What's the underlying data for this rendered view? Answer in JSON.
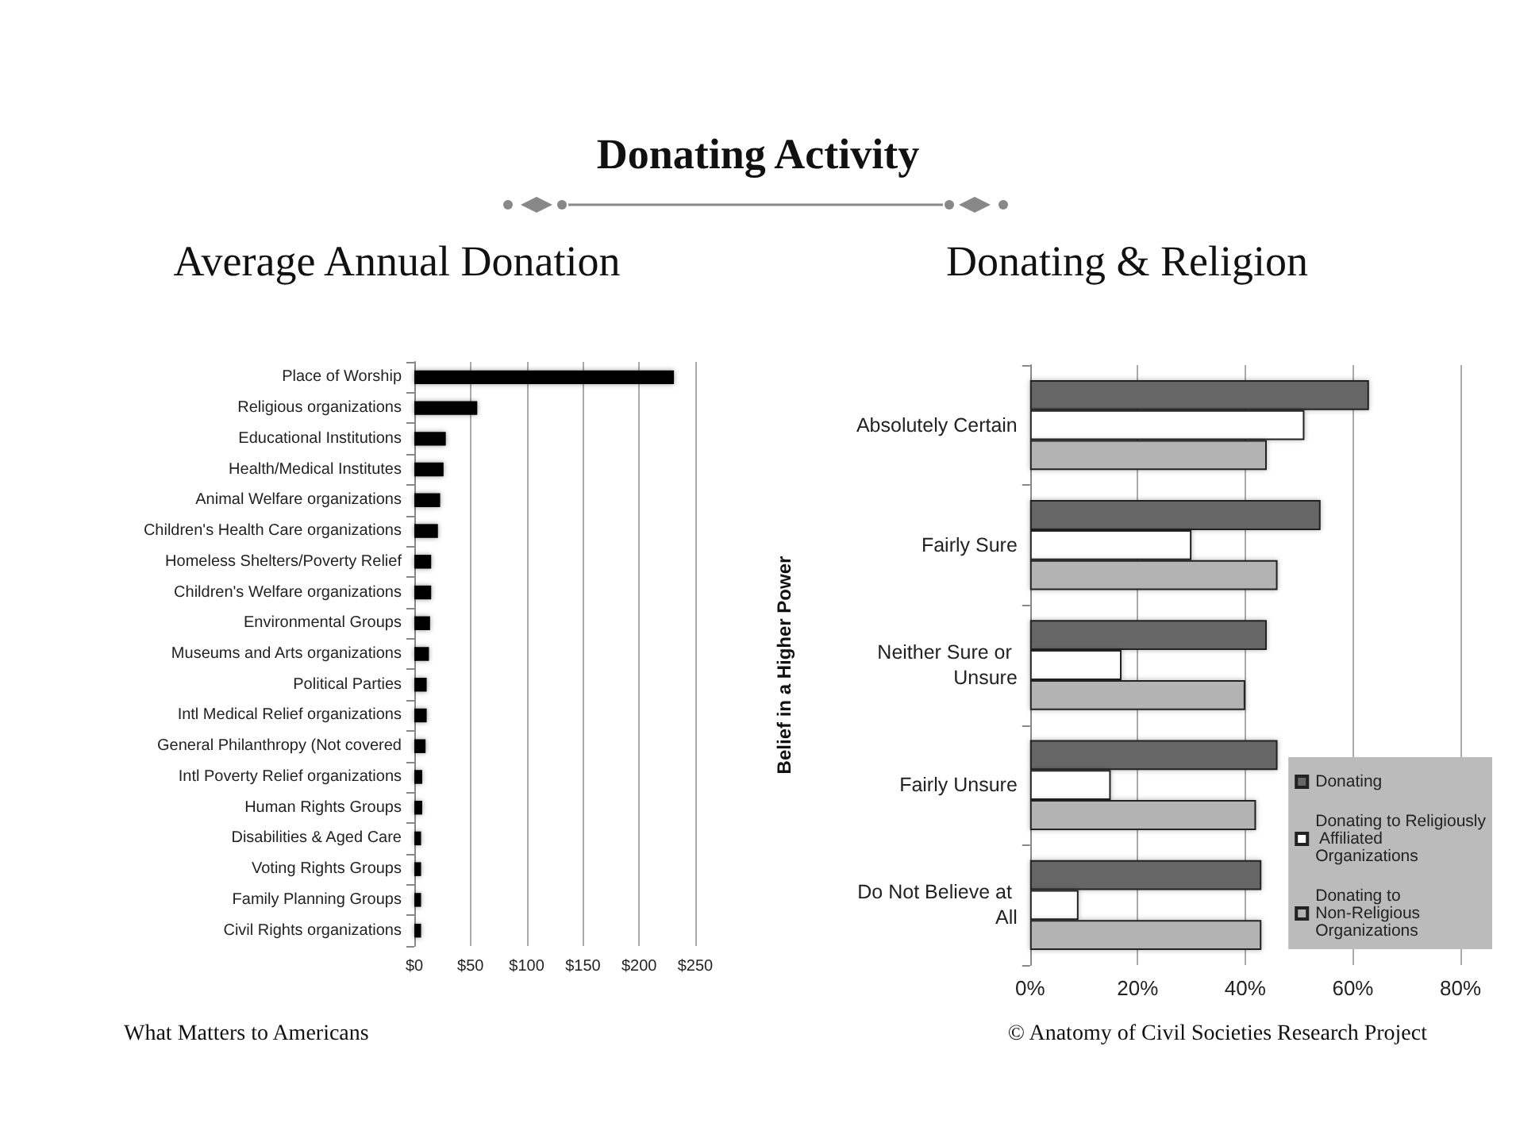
{
  "chart_data": [
    {
      "type": "bar",
      "orientation": "horizontal",
      "title": "Average Annual Donation",
      "annotations": [
        "Donating Activity",
        "What Matters to Americans"
      ],
      "categories": [
        "Place of Worship",
        "Religious organizations",
        "Educational Institutions",
        "Health/Medical Institutes",
        "Animal Welfare organizations",
        "Children's Health Care organizations",
        "Homeless Shelters/Poverty Relief",
        "Children's Welfare organizations",
        "Environmental Groups",
        "Museums and Arts organizations",
        "Political Parties",
        "Intl Medical Relief organizations",
        "General Philanthropy (Not covered",
        "Intl Poverty Relief organizations",
        "Human Rights Groups",
        "Disabilities & Aged Care",
        "Voting Rights Groups",
        "Family Planning Groups",
        "Civil Rights organizations"
      ],
      "values": [
        231,
        56,
        28,
        26,
        23,
        21,
        15,
        15,
        14,
        13,
        11,
        11,
        10,
        7,
        7,
        6,
        6,
        6,
        6
      ],
      "color": "#000000",
      "xlim": [
        0,
        250
      ],
      "xticks": [
        {
          "value": 0,
          "label": "$0"
        },
        {
          "value": 50,
          "label": "$50"
        },
        {
          "value": 100,
          "label": "$100"
        },
        {
          "value": 150,
          "label": "$150"
        },
        {
          "value": 200,
          "label": "$200"
        },
        {
          "value": 250,
          "label": "$250"
        }
      ],
      "grid": "x",
      "legend": false
    },
    {
      "type": "bar",
      "orientation": "horizontal",
      "title": "Donating & Religion",
      "ylabel": "Belief in a Higher Power",
      "annotations": [
        "© Anatomy of Civil Societies Research Project"
      ],
      "categories": [
        "Absolutely Certain",
        "Fairly Sure",
        "Neither Sure or Unsure",
        "Fairly Unsure",
        "Do Not Believe at All"
      ],
      "series": [
        {
          "name": "Donating",
          "color": "#666666",
          "values": [
            63,
            54,
            44,
            46,
            43
          ]
        },
        {
          "name": "Donating to Religiously Affiliated Organizations",
          "color": "#ffffff",
          "values": [
            51,
            30,
            17,
            15,
            9
          ]
        },
        {
          "name": "Donating to Non-Religious Organizations",
          "color": "#b3b3b3",
          "values": [
            44,
            46,
            40,
            42,
            43
          ]
        }
      ],
      "xlim": [
        0,
        80
      ],
      "xticks": [
        {
          "value": 0,
          "label": "0%"
        },
        {
          "value": 20,
          "label": "20%"
        },
        {
          "value": 40,
          "label": "40%"
        },
        {
          "value": 60,
          "label": "60%"
        },
        {
          "value": 80,
          "label": "80%"
        }
      ],
      "grid": "x",
      "legend": "bottom right"
    }
  ]
}
